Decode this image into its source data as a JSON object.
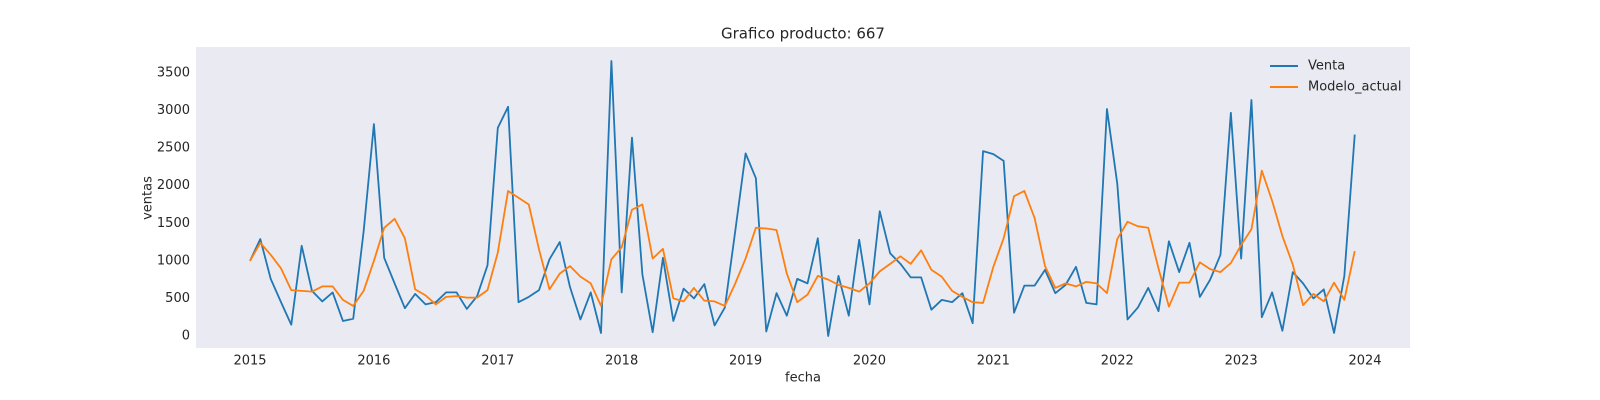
{
  "chart_data": {
    "type": "line",
    "title": "Grafico producto: 667",
    "xlabel": "fecha",
    "ylabel": "ventas",
    "x": [
      2015,
      2015.083,
      2015.167,
      2015.25,
      2015.333,
      2015.417,
      2015.5,
      2015.583,
      2015.667,
      2015.75,
      2015.833,
      2015.917,
      2016,
      2016.083,
      2016.167,
      2016.25,
      2016.333,
      2016.417,
      2016.5,
      2016.583,
      2016.667,
      2016.75,
      2016.833,
      2016.917,
      2017,
      2017.083,
      2017.167,
      2017.25,
      2017.333,
      2017.417,
      2017.5,
      2017.583,
      2017.667,
      2017.75,
      2017.833,
      2017.917,
      2018,
      2018.083,
      2018.167,
      2018.25,
      2018.333,
      2018.417,
      2018.5,
      2018.583,
      2018.667,
      2018.75,
      2018.833,
      2018.917,
      2019,
      2019.083,
      2019.167,
      2019.25,
      2019.333,
      2019.417,
      2019.5,
      2019.583,
      2019.667,
      2019.75,
      2019.833,
      2019.917,
      2020,
      2020.083,
      2020.167,
      2020.25,
      2020.333,
      2020.417,
      2020.5,
      2020.583,
      2020.667,
      2020.75,
      2020.833,
      2020.917,
      2021,
      2021.083,
      2021.167,
      2021.25,
      2021.333,
      2021.417,
      2021.5,
      2021.583,
      2021.667,
      2021.75,
      2021.833,
      2021.917,
      2022,
      2022.083,
      2022.167,
      2022.25,
      2022.333,
      2022.417,
      2022.5,
      2022.583,
      2022.667,
      2022.75,
      2022.833,
      2022.917,
      2023,
      2023.083,
      2023.167,
      2023.25,
      2023.333,
      2023.417,
      2023.5,
      2023.583,
      2023.667,
      2023.75,
      2023.833,
      2023.917
    ],
    "series": [
      {
        "name": "Venta",
        "color": "#1f77b4",
        "values": [
          1000,
          1290,
          760,
          450,
          150,
          1200,
          600,
          460,
          580,
          200,
          230,
          1390,
          2820,
          1040,
          700,
          370,
          560,
          420,
          450,
          580,
          580,
          360,
          530,
          940,
          2770,
          3050,
          450,
          520,
          610,
          1020,
          1250,
          650,
          220,
          580,
          40,
          3660,
          580,
          2640,
          820,
          50,
          1040,
          200,
          630,
          500,
          690,
          140,
          380,
          1400,
          2430,
          2100,
          60,
          570,
          270,
          760,
          700,
          1300,
          0,
          800,
          270,
          1280,
          420,
          1660,
          1100,
          960,
          780,
          780,
          350,
          480,
          450,
          570,
          170,
          2460,
          2420,
          2330,
          310,
          670,
          670,
          880,
          570,
          680,
          920,
          440,
          420,
          3020,
          2030,
          220,
          380,
          640,
          330,
          1260,
          850,
          1240,
          520,
          750,
          1080,
          2970,
          1030,
          3140,
          250,
          580,
          70,
          850,
          700,
          500,
          620,
          40,
          800,
          2680
        ]
      },
      {
        "name": "Modelo_actual",
        "color": "#ff7f0e",
        "values": [
          1000,
          1240,
          1080,
          900,
          610,
          600,
          590,
          660,
          660,
          480,
          400,
          600,
          1000,
          1440,
          1560,
          1300,
          620,
          540,
          420,
          520,
          530,
          510,
          510,
          610,
          1110,
          1930,
          1840,
          1750,
          1150,
          620,
          830,
          930,
          790,
          700,
          400,
          1020,
          1180,
          1680,
          1750,
          1030,
          1160,
          500,
          460,
          640,
          470,
          460,
          400,
          700,
          1030,
          1440,
          1430,
          1410,
          830,
          450,
          550,
          800,
          750,
          680,
          640,
          590,
          700,
          860,
          960,
          1060,
          960,
          1140,
          880,
          790,
          600,
          520,
          450,
          440,
          920,
          1300,
          1860,
          1930,
          1570,
          930,
          640,
          700,
          660,
          720,
          700,
          570,
          1290,
          1520,
          1460,
          1440,
          900,
          390,
          710,
          710,
          980,
          890,
          850,
          970,
          1210,
          1420,
          2200,
          1800,
          1330,
          950,
          410,
          560,
          460,
          710,
          480,
          1130
        ]
      }
    ],
    "xlim": [
      2014.564,
      2024.363
    ],
    "xticks": [
      2015,
      2016,
      2017,
      2018,
      2019,
      2020,
      2021,
      2022,
      2023,
      2024
    ],
    "ylim": [
      -160,
      3846
    ],
    "yticks": [
      0,
      500,
      1000,
      1500,
      2000,
      2500,
      3000,
      3500
    ],
    "grid": false,
    "legend": "upper right"
  }
}
